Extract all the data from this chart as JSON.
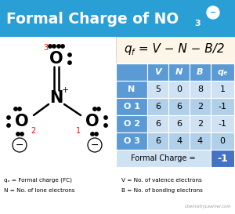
{
  "bg_color": "#ffffff",
  "header_bg": "#2a9fd6",
  "title_main": "Formal Charge of NO",
  "title_sub3": "3",
  "title_sup_minus": "−",
  "formula_bg": "#fdf6e8",
  "formula": "q",
  "formula_f": "f",
  "formula_rhs": " = V − N − B/2",
  "table_header_color": "#5b9bd5",
  "table_col1_color": "#5b9bd5",
  "table_light": "#cfe2f3",
  "table_mid": "#b0cfe8",
  "table_dark_cell": "#4472c4",
  "table_headers": [
    "",
    "V",
    "N",
    "B",
    "qₑ"
  ],
  "table_rows": [
    [
      "N",
      "5",
      "0",
      "8",
      "1"
    ],
    [
      "O 1",
      "6",
      "6",
      "2",
      "-1"
    ],
    [
      "O 2",
      "6",
      "6",
      "2",
      "-1"
    ],
    [
      "O 3",
      "6",
      "4",
      "4",
      "0"
    ]
  ],
  "formal_charge_label": "Formal Charge =",
  "formal_charge_val": "-1",
  "footer_left1": "qₑ = Formal charge (FC)",
  "footer_left2": "N = No. of lone electrons",
  "footer_right1": "V = No. of valence electrons",
  "footer_right2": "B = No. of bonding electrons",
  "watermark": "ChemistryLearner.com"
}
